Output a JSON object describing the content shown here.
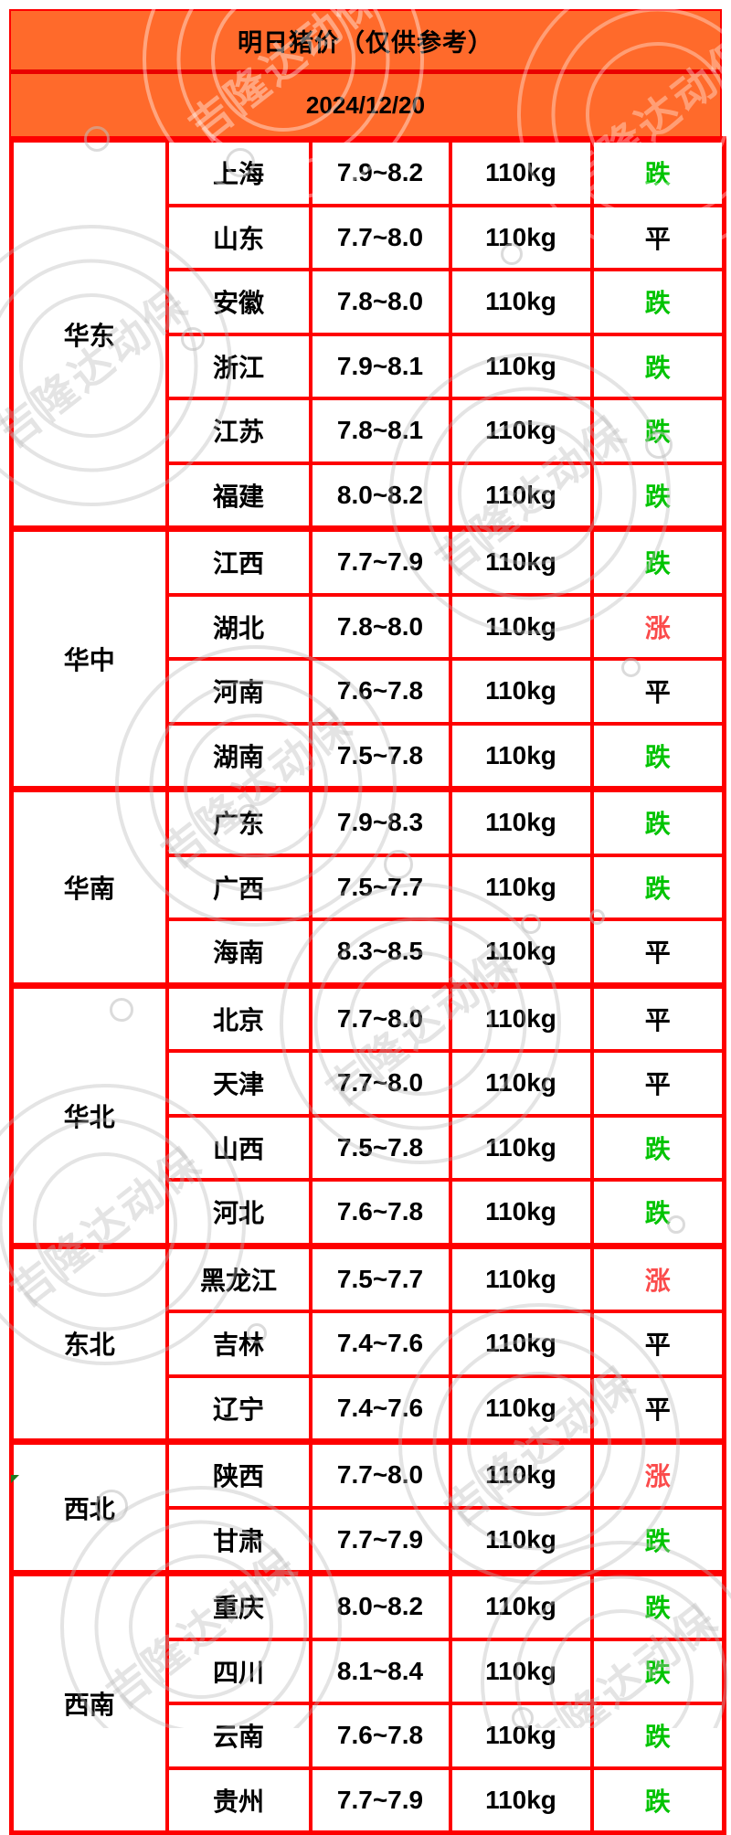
{
  "page": {
    "title": "明日猪价（仅供参考）",
    "date": "2024/12/20"
  },
  "watermark": {
    "text": "吉隆达动保"
  },
  "colors": {
    "header_bg": "#FF6A2B",
    "divider_red": "#E90000",
    "grid_red": "#FE0000",
    "trend_down_green": "#00C300",
    "trend_flat_black": "#000000",
    "trend_up_red": "#FB4B4B",
    "corner_flag_green": "#1F7A1F"
  },
  "table": {
    "weight_label": "110kg",
    "trend_styles": {
      "跌": "down",
      "平": "flat",
      "涨": "up"
    },
    "regions": [
      {
        "name": "华东",
        "rows": [
          {
            "province": "上海",
            "price": "7.9~8.2",
            "trend": "跌"
          },
          {
            "province": "山东",
            "price": "7.7~8.0",
            "trend": "平"
          },
          {
            "province": "安徽",
            "price": "7.8~8.0",
            "trend": "跌"
          },
          {
            "province": "浙江",
            "price": "7.9~8.1",
            "trend": "跌"
          },
          {
            "province": "江苏",
            "price": "7.8~8.1",
            "trend": "跌"
          },
          {
            "province": "福建",
            "price": "8.0~8.2",
            "trend": "跌"
          }
        ]
      },
      {
        "name": "华中",
        "rows": [
          {
            "province": "江西",
            "price": "7.7~7.9",
            "trend": "跌"
          },
          {
            "province": "湖北",
            "price": "7.8~8.0",
            "trend": "涨"
          },
          {
            "province": "河南",
            "price": "7.6~7.8",
            "trend": "平"
          },
          {
            "province": "湖南",
            "price": "7.5~7.8",
            "trend": "跌"
          }
        ]
      },
      {
        "name": "华南",
        "rows": [
          {
            "province": "广东",
            "price": "7.9~8.3",
            "trend": "跌"
          },
          {
            "province": "广西",
            "price": "7.5~7.7",
            "trend": "跌"
          },
          {
            "province": "海南",
            "price": "8.3~8.5",
            "trend": "平"
          }
        ]
      },
      {
        "name": "华北",
        "rows": [
          {
            "province": "北京",
            "price": "7.7~8.0",
            "trend": "平"
          },
          {
            "province": "天津",
            "price": "7.7~8.0",
            "trend": "平"
          },
          {
            "province": "山西",
            "price": "7.5~7.8",
            "trend": "跌"
          },
          {
            "province": "河北",
            "price": "7.6~7.8",
            "trend": "跌"
          }
        ]
      },
      {
        "name": "东北",
        "rows": [
          {
            "province": "黑龙江",
            "price": "7.5~7.7",
            "trend": "涨"
          },
          {
            "province": "吉林",
            "price": "7.4~7.6",
            "trend": "平"
          },
          {
            "province": "辽宁",
            "price": "7.4~7.6",
            "trend": "平"
          }
        ]
      },
      {
        "name": "西北",
        "rows": [
          {
            "province": "陕西",
            "price": "7.7~8.0",
            "trend": "涨"
          },
          {
            "province": "甘肃",
            "price": "7.7~7.9",
            "trend": "跌"
          }
        ]
      },
      {
        "name": "西南",
        "rows": [
          {
            "province": "重庆",
            "price": "8.0~8.2",
            "trend": "跌"
          },
          {
            "province": "四川",
            "price": "8.1~8.4",
            "trend": "跌"
          },
          {
            "province": "云南",
            "price": "7.6~7.8",
            "trend": "跌"
          },
          {
            "province": "贵州",
            "price": "7.7~7.9",
            "trend": "跌"
          }
        ]
      }
    ]
  }
}
